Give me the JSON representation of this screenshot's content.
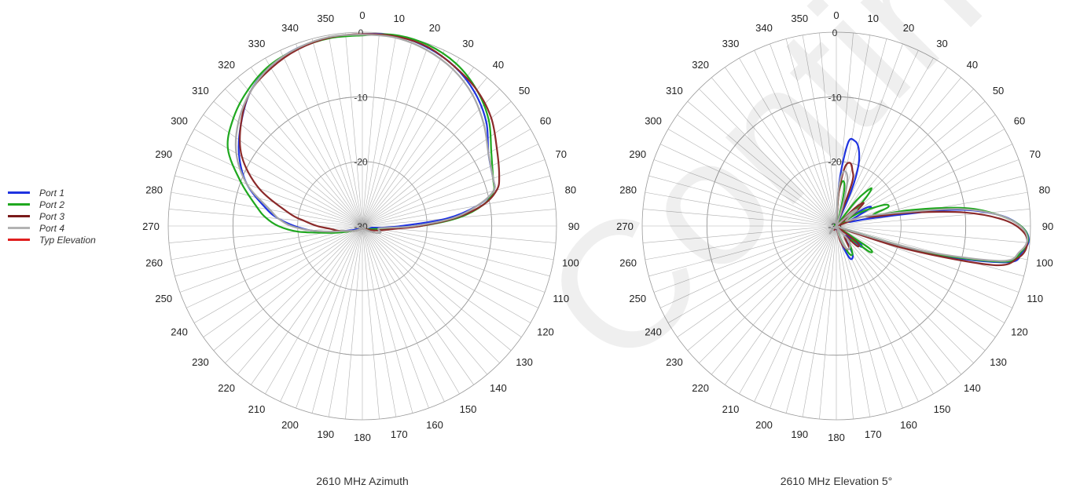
{
  "legend": [
    {
      "name": "Port 1",
      "color": "#1f33e0"
    },
    {
      "name": "Port 2",
      "color": "#1fa81f"
    },
    {
      "name": "Port 3",
      "color": "#7a1a1a"
    },
    {
      "name": "Port 4",
      "color": "#b3b3b3"
    },
    {
      "name": "Typ Elevation",
      "color": "#e01f1f"
    }
  ],
  "watermark": "Continue",
  "chart_data": [
    {
      "type": "polar-line",
      "title": "2610 MHz Azimuth",
      "angle_ticks": [
        0,
        10,
        20,
        30,
        40,
        50,
        60,
        70,
        80,
        90,
        100,
        110,
        120,
        130,
        140,
        150,
        160,
        170,
        180,
        190,
        200,
        210,
        220,
        230,
        240,
        250,
        260,
        270,
        280,
        290,
        300,
        310,
        320,
        330,
        340,
        350
      ],
      "radial_ticks": [
        0,
        -10,
        -20,
        -30
      ],
      "rlim": [
        -30,
        0
      ],
      "angle_direction": "clockwise",
      "zero_at": "top",
      "grid": true,
      "series": [
        {
          "name": "Port 1",
          "color": "#1f33e0",
          "points": [
            [
              0,
              -0.3
            ],
            [
              10,
              -0.1
            ],
            [
              20,
              -0.6
            ],
            [
              30,
              -1.5
            ],
            [
              40,
              -3
            ],
            [
              50,
              -5
            ],
            [
              60,
              -7.5
            ],
            [
              70,
              -8.5
            ],
            [
              75,
              -9
            ],
            [
              80,
              -12
            ],
            [
              85,
              -17
            ],
            [
              90,
              -24
            ],
            [
              95,
              -27
            ],
            [
              100,
              -28.5
            ],
            [
              120,
              -29
            ],
            [
              150,
              -29.5
            ],
            [
              180,
              -29.8
            ],
            [
              210,
              -29.5
            ],
            [
              240,
              -29
            ],
            [
              250,
              -28
            ],
            [
              260,
              -25
            ],
            [
              265,
              -22
            ],
            [
              270,
              -19.5
            ],
            [
              275,
              -17
            ],
            [
              280,
              -15
            ],
            [
              290,
              -11
            ],
            [
              300,
              -8
            ],
            [
              310,
              -5.5
            ],
            [
              320,
              -3
            ],
            [
              330,
              -1.5
            ],
            [
              340,
              -0.7
            ],
            [
              350,
              -0.4
            ]
          ]
        },
        {
          "name": "Port 2",
          "color": "#1fa81f",
          "points": [
            [
              0,
              -0.5
            ],
            [
              10,
              0
            ],
            [
              20,
              -0.2
            ],
            [
              30,
              -1
            ],
            [
              40,
              -2.5
            ],
            [
              50,
              -4.5
            ],
            [
              60,
              -7
            ],
            [
              70,
              -8.5
            ],
            [
              75,
              -9
            ],
            [
              80,
              -11
            ],
            [
              85,
              -15
            ],
            [
              90,
              -21
            ],
            [
              95,
              -26
            ],
            [
              100,
              -27.5
            ],
            [
              120,
              -29
            ],
            [
              150,
              -29.5
            ],
            [
              180,
              -29.8
            ],
            [
              210,
              -29.5
            ],
            [
              240,
              -28.5
            ],
            [
              255,
              -26
            ],
            [
              260,
              -24
            ],
            [
              265,
              -20
            ],
            [
              270,
              -17
            ],
            [
              275,
              -15
            ],
            [
              280,
              -13.5
            ],
            [
              290,
              -10
            ],
            [
              300,
              -6
            ],
            [
              310,
              -4
            ],
            [
              320,
              -2.5
            ],
            [
              330,
              -1.3
            ],
            [
              340,
              -0.8
            ],
            [
              350,
              -0.5
            ]
          ]
        },
        {
          "name": "Port 3",
          "color": "#8b2a2a",
          "points": [
            [
              0,
              -0.3
            ],
            [
              10,
              -0.2
            ],
            [
              20,
              -0.5
            ],
            [
              30,
              -1.5
            ],
            [
              40,
              -2.5
            ],
            [
              50,
              -4
            ],
            [
              60,
              -6
            ],
            [
              70,
              -7.5
            ],
            [
              75,
              -8.5
            ],
            [
              80,
              -11
            ],
            [
              85,
              -15.5
            ],
            [
              90,
              -21
            ],
            [
              95,
              -25
            ],
            [
              100,
              -26.5
            ],
            [
              110,
              -28
            ],
            [
              150,
              -29.5
            ],
            [
              180,
              -29.8
            ],
            [
              210,
              -29.5
            ],
            [
              240,
              -28.5
            ],
            [
              255,
              -27
            ],
            [
              260,
              -26
            ],
            [
              265,
              -25
            ],
            [
              270,
              -23
            ],
            [
              275,
              -21
            ],
            [
              280,
              -18.5
            ],
            [
              290,
              -13
            ],
            [
              300,
              -8.5
            ],
            [
              310,
              -5.5
            ],
            [
              320,
              -3
            ],
            [
              330,
              -1.8
            ],
            [
              340,
              -0.9
            ],
            [
              350,
              -0.4
            ]
          ]
        },
        {
          "name": "Port 4",
          "color": "#a8a8a8",
          "points": [
            [
              0,
              -0.4
            ],
            [
              10,
              -0.4
            ],
            [
              20,
              -1
            ],
            [
              30,
              -2
            ],
            [
              40,
              -3.5
            ],
            [
              50,
              -5.5
            ],
            [
              60,
              -7.5
            ],
            [
              70,
              -8.5
            ],
            [
              75,
              -9
            ],
            [
              80,
              -12
            ],
            [
              85,
              -16
            ],
            [
              90,
              -22
            ],
            [
              95,
              -26.5
            ],
            [
              100,
              -27.5
            ],
            [
              110,
              -27
            ],
            [
              120,
              -28
            ],
            [
              150,
              -29.5
            ],
            [
              180,
              -29.8
            ],
            [
              210,
              -29.5
            ],
            [
              240,
              -28.5
            ],
            [
              255,
              -27
            ],
            [
              260,
              -25
            ],
            [
              265,
              -22
            ],
            [
              270,
              -19
            ],
            [
              275,
              -17
            ],
            [
              280,
              -15.5
            ],
            [
              290,
              -11
            ],
            [
              300,
              -7.5
            ],
            [
              310,
              -5
            ],
            [
              320,
              -3
            ],
            [
              330,
              -1.5
            ],
            [
              340,
              -0.7
            ],
            [
              350,
              -0.3
            ]
          ]
        }
      ]
    },
    {
      "type": "polar-line",
      "title": "2610 MHz Elevation 5°",
      "angle_ticks": [
        0,
        10,
        20,
        30,
        40,
        50,
        60,
        70,
        80,
        90,
        100,
        110,
        120,
        130,
        140,
        150,
        160,
        170,
        180,
        190,
        200,
        210,
        220,
        230,
        240,
        250,
        260,
        270,
        280,
        290,
        300,
        310,
        320,
        330,
        340,
        350
      ],
      "radial_ticks": [
        0,
        -10,
        -20,
        -30
      ],
      "rlim": [
        -30,
        0
      ],
      "angle_direction": "clockwise",
      "zero_at": "top",
      "grid": true,
      "series": [
        {
          "name": "Port 1",
          "color": "#1f33e0",
          "points": [
            [
              0,
              -30
            ],
            [
              4,
              -23
            ],
            [
              8,
              -17
            ],
            [
              12,
              -16.5
            ],
            [
              16,
              -17.5
            ],
            [
              20,
              -20
            ],
            [
              23,
              -24
            ],
            [
              28,
              -30
            ],
            [
              50,
              -30
            ],
            [
              58,
              -25
            ],
            [
              62,
              -24
            ],
            [
              66,
              -27
            ],
            [
              72,
              -28
            ],
            [
              78,
              -24
            ],
            [
              82,
              -12
            ],
            [
              86,
              -5
            ],
            [
              90,
              -1.5
            ],
            [
              94,
              -0.2
            ],
            [
              98,
              -1
            ],
            [
              102,
              -3
            ],
            [
              106,
              -14
            ],
            [
              110,
              -28
            ],
            [
              116,
              -30
            ],
            [
              125,
              -26
            ],
            [
              130,
              -25
            ],
            [
              138,
              -28
            ],
            [
              150,
              -25
            ],
            [
              157,
              -24.5
            ],
            [
              163,
              -27
            ],
            [
              170,
              -30
            ],
            [
              355,
              -30
            ]
          ]
        },
        {
          "name": "Port 2",
          "color": "#1fa81f",
          "points": [
            [
              0,
              -30
            ],
            [
              4,
              -25
            ],
            [
              8,
              -23
            ],
            [
              12,
              -24
            ],
            [
              16,
              -28
            ],
            [
              22,
              -30
            ],
            [
              32,
              -30
            ],
            [
              38,
              -25
            ],
            [
              43,
              -22
            ],
            [
              48,
              -25
            ],
            [
              54,
              -30
            ],
            [
              60,
              -26
            ],
            [
              66,
              -22
            ],
            [
              70,
              -21.5
            ],
            [
              74,
              -24
            ],
            [
              78,
              -18
            ],
            [
              82,
              -10
            ],
            [
              86,
              -5
            ],
            [
              90,
              -1.5
            ],
            [
              94,
              -0.3
            ],
            [
              98,
              -1.2
            ],
            [
              102,
              -3.5
            ],
            [
              106,
              -15
            ],
            [
              110,
              -28
            ],
            [
              116,
              -30
            ],
            [
              124,
              -24
            ],
            [
              128,
              -23.5
            ],
            [
              134,
              -27
            ],
            [
              150,
              -25
            ],
            [
              156,
              -25.5
            ],
            [
              162,
              -28
            ],
            [
              170,
              -30
            ],
            [
              350,
              -30
            ]
          ]
        },
        {
          "name": "Port 3",
          "color": "#8b2a2a",
          "points": [
            [
              0,
              -30
            ],
            [
              4,
              -25
            ],
            [
              8,
              -21
            ],
            [
              12,
              -20
            ],
            [
              16,
              -21
            ],
            [
              20,
              -23
            ],
            [
              25,
              -30
            ],
            [
              40,
              -30
            ],
            [
              46,
              -26
            ],
            [
              50,
              -24.5
            ],
            [
              55,
              -27
            ],
            [
              62,
              -30
            ],
            [
              70,
              -26
            ],
            [
              76,
              -24
            ],
            [
              80,
              -18
            ],
            [
              84,
              -10
            ],
            [
              88,
              -4
            ],
            [
              92,
              -1
            ],
            [
              96,
              -0.4
            ],
            [
              100,
              -1.5
            ],
            [
              104,
              -5
            ],
            [
              108,
              -18
            ],
            [
              112,
              -28
            ],
            [
              118,
              -30
            ],
            [
              128,
              -26
            ],
            [
              134,
              -25.5
            ],
            [
              140,
              -28
            ],
            [
              150,
              -26
            ],
            [
              160,
              -26.5
            ],
            [
              166,
              -28
            ],
            [
              172,
              -30
            ],
            [
              355,
              -30
            ]
          ]
        },
        {
          "name": "Port 4",
          "color": "#a8a8a8",
          "points": [
            [
              0,
              -30
            ],
            [
              3,
              -25
            ],
            [
              6,
              -22
            ],
            [
              10,
              -21.5
            ],
            [
              14,
              -23
            ],
            [
              18,
              -27
            ],
            [
              24,
              -30
            ],
            [
              40,
              -30
            ],
            [
              48,
              -27
            ],
            [
              52,
              -26
            ],
            [
              58,
              -28
            ],
            [
              66,
              -28
            ],
            [
              72,
              -25
            ],
            [
              78,
              -20
            ],
            [
              82,
              -11
            ],
            [
              86,
              -5
            ],
            [
              90,
              -1.6
            ],
            [
              94,
              -0.4
            ],
            [
              98,
              -1.4
            ],
            [
              102,
              -4
            ],
            [
              106,
              -16
            ],
            [
              110,
              -28
            ],
            [
              118,
              -30
            ],
            [
              140,
              -27
            ],
            [
              150,
              -26
            ],
            [
              158,
              -26.5
            ],
            [
              165,
              -28.5
            ],
            [
              172,
              -30
            ],
            [
              220,
              -28.5
            ],
            [
              228,
              -29
            ],
            [
              240,
              -30
            ],
            [
              355,
              -30
            ]
          ]
        }
      ]
    }
  ]
}
